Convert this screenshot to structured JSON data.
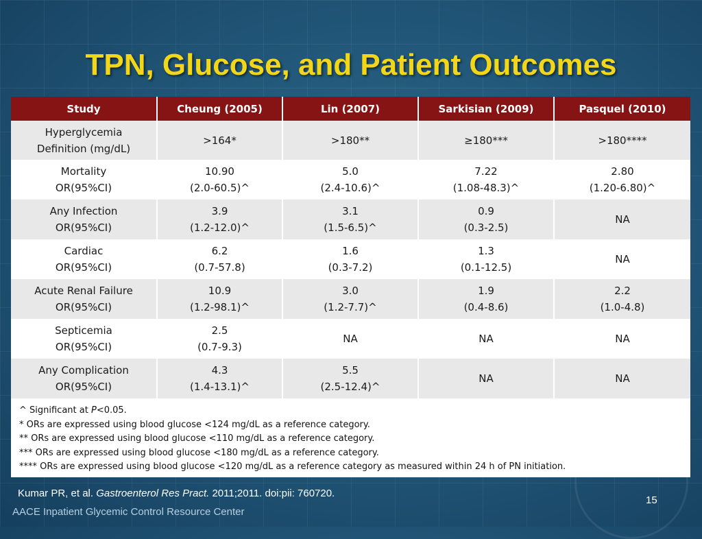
{
  "slide": {
    "title": "TPN, Glucose, and Patient Outcomes",
    "citation_prefix": "Kumar PR, et al. ",
    "citation_journal": "Gastroenterol Res Pract.",
    "citation_suffix": " 2011;2011. doi:pii: 760720.",
    "organization": "AACE Inpatient Glycemic Control Resource Center",
    "page_number": "15",
    "colors": {
      "title": "#f2d61a",
      "header_bg": "#861414",
      "background": "#22587a"
    }
  },
  "table": {
    "headers": [
      "Study",
      "Cheung (2005)",
      "Lin (2007)",
      "Sarkisian (2009)",
      "Pasquel (2010)"
    ],
    "rows": [
      {
        "label": [
          "Hyperglycemia",
          "Definition (mg/dL)"
        ],
        "cells": [
          [
            ">164*"
          ],
          [
            ">180**"
          ],
          [
            "≥180***"
          ],
          [
            ">180****"
          ]
        ]
      },
      {
        "label": [
          "Mortality",
          "OR(95%CI)"
        ],
        "cells": [
          [
            "10.90",
            "(2.0-60.5)^"
          ],
          [
            "5.0",
            "(2.4-10.6)^"
          ],
          [
            "7.22",
            "(1.08-48.3)^"
          ],
          [
            "2.80",
            "(1.20-6.80)^"
          ]
        ]
      },
      {
        "label": [
          "Any Infection",
          "OR(95%CI)"
        ],
        "cells": [
          [
            "3.9",
            "(1.2-12.0)^"
          ],
          [
            "3.1",
            "(1.5-6.5)^"
          ],
          [
            "0.9",
            "(0.3-2.5)"
          ],
          [
            "NA"
          ]
        ]
      },
      {
        "label": [
          "Cardiac",
          "OR(95%CI)"
        ],
        "cells": [
          [
            "6.2",
            "(0.7-57.8)"
          ],
          [
            "1.6",
            "(0.3-7.2)"
          ],
          [
            "1.3",
            "(0.1-12.5)"
          ],
          [
            "NA"
          ]
        ]
      },
      {
        "label": [
          "Acute Renal Failure",
          "OR(95%CI)"
        ],
        "cells": [
          [
            "10.9",
            "(1.2-98.1)^"
          ],
          [
            "3.0",
            "(1.2-7.7)^"
          ],
          [
            "1.9",
            "(0.4-8.6)"
          ],
          [
            "2.2",
            "(1.0-4.8)"
          ]
        ]
      },
      {
        "label": [
          "Septicemia",
          "OR(95%CI)"
        ],
        "cells": [
          [
            "2.5",
            "(0.7-9.3)"
          ],
          [
            "NA"
          ],
          [
            "NA"
          ],
          [
            "NA"
          ]
        ]
      },
      {
        "label": [
          "Any Complication",
          "OR(95%CI)"
        ],
        "cells": [
          [
            "4.3",
            "(1.4-13.1)^"
          ],
          [
            "5.5",
            "(2.5-12.4)^"
          ],
          [
            "NA"
          ],
          [
            "NA"
          ]
        ]
      }
    ]
  },
  "footnotes": {
    "sig_prefix": "^ Significant at ",
    "sig_p": "P",
    "sig_suffix": "<0.05.",
    "notes": [
      "* ORs are expressed using blood glucose <124 mg/dL as a reference category.",
      "** ORs are expressed using blood glucose <110 mg/dL as a reference category.",
      "*** ORs are expressed using blood glucose <180 mg/dL as a reference category.",
      "**** ORs are expressed using blood glucose <120 mg/dL as a reference category as measured within 24 h of PN initiation."
    ]
  }
}
